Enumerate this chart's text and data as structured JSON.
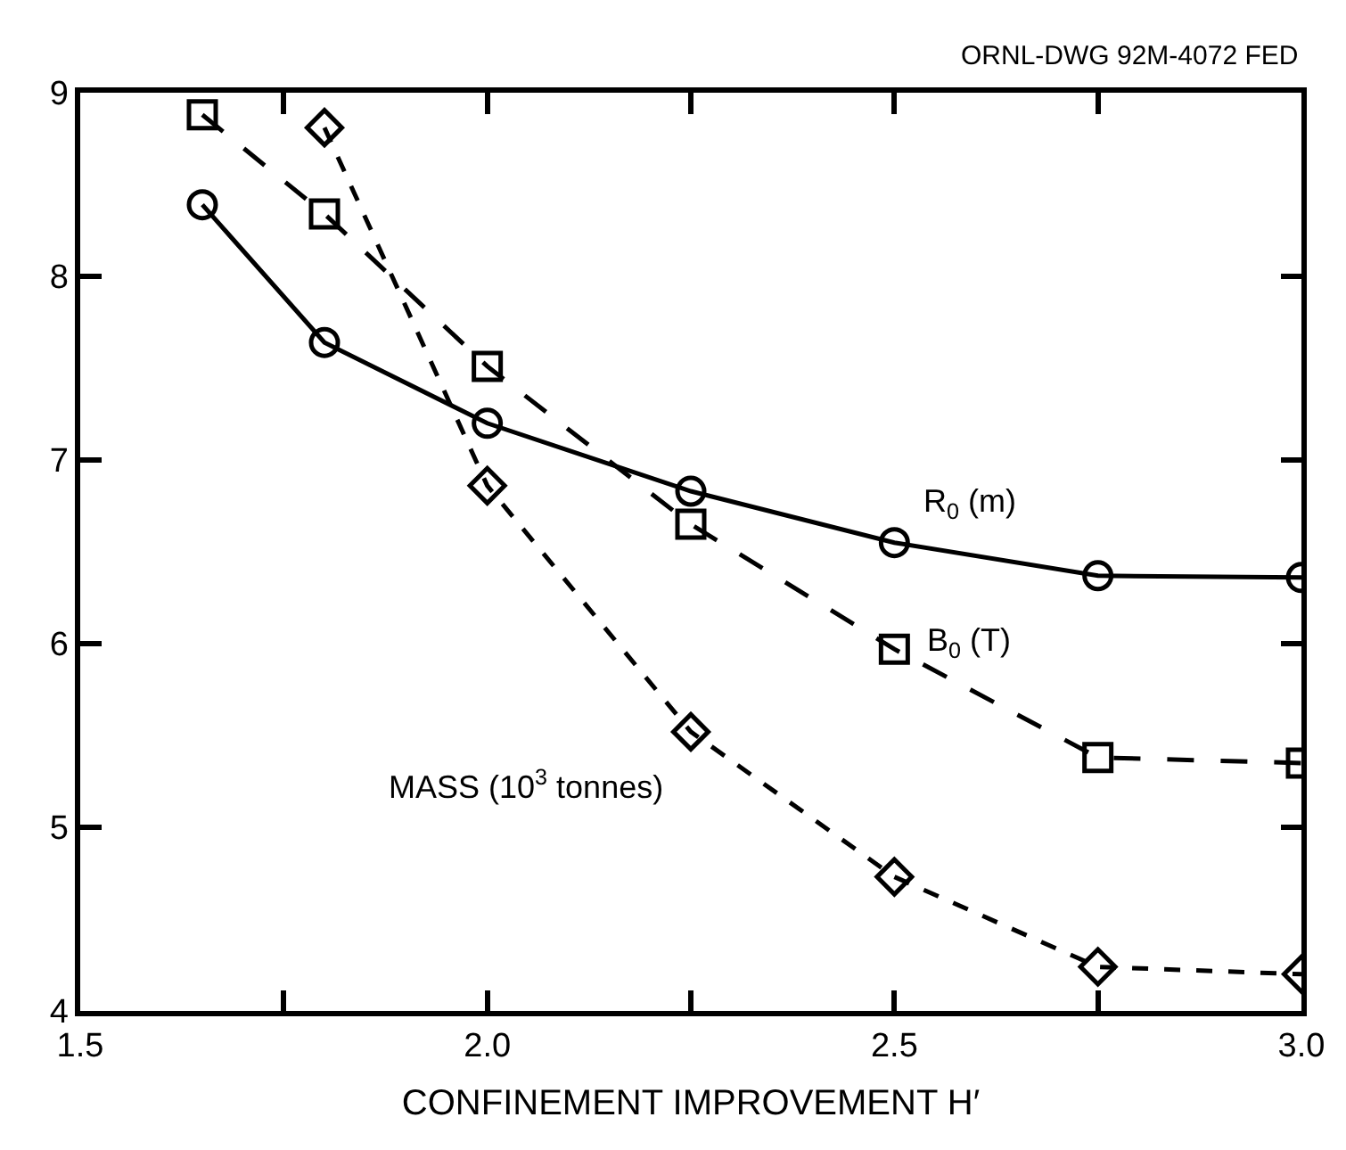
{
  "chart_data": {
    "type": "line",
    "xlabel": "CONFINEMENT IMPROVEMENT H′",
    "annotations": [
      "ORNL-DWG 92M-4072 FED"
    ],
    "xlim": [
      1.5,
      3.0
    ],
    "ylim": [
      4,
      9
    ],
    "xticks": [
      {
        "value": 1.5,
        "label": "1.5"
      },
      {
        "value": 1.75,
        "label": null
      },
      {
        "value": 2.0,
        "label": "2.0"
      },
      {
        "value": 2.25,
        "label": null
      },
      {
        "value": 2.5,
        "label": "2.5"
      },
      {
        "value": 2.75,
        "label": null
      },
      {
        "value": 3.0,
        "label": "3.0"
      }
    ],
    "yticks": [
      4,
      5,
      6,
      7,
      8,
      9
    ],
    "legend": false,
    "series": [
      {
        "name": "R$_{0}$ (m)",
        "color": "#000000",
        "marker": "circle",
        "line_style": "solid",
        "x": [
          1.65,
          1.8,
          2.0,
          2.25,
          2.5,
          2.75,
          3.0
        ],
        "values": [
          8.39,
          7.64,
          7.2,
          6.83,
          6.55,
          6.37,
          6.36
        ]
      },
      {
        "name": "B$_{0}$ (T)",
        "color": "#000000",
        "marker": "square",
        "line_style": "longdash",
        "x": [
          1.65,
          1.8,
          2.0,
          2.25,
          2.5,
          2.75,
          3.0
        ],
        "values": [
          8.88,
          8.34,
          7.51,
          6.65,
          5.97,
          5.38,
          5.35
        ]
      },
      {
        "name": "MASS (10$^{3}$ tonnes)",
        "color": "#000000",
        "marker": "diamond",
        "line_style": "dashed",
        "x": [
          1.8,
          2.0,
          2.25,
          2.5,
          2.75,
          3.0
        ],
        "values": [
          8.81,
          6.86,
          5.52,
          4.73,
          4.24,
          4.2
        ]
      }
    ]
  }
}
